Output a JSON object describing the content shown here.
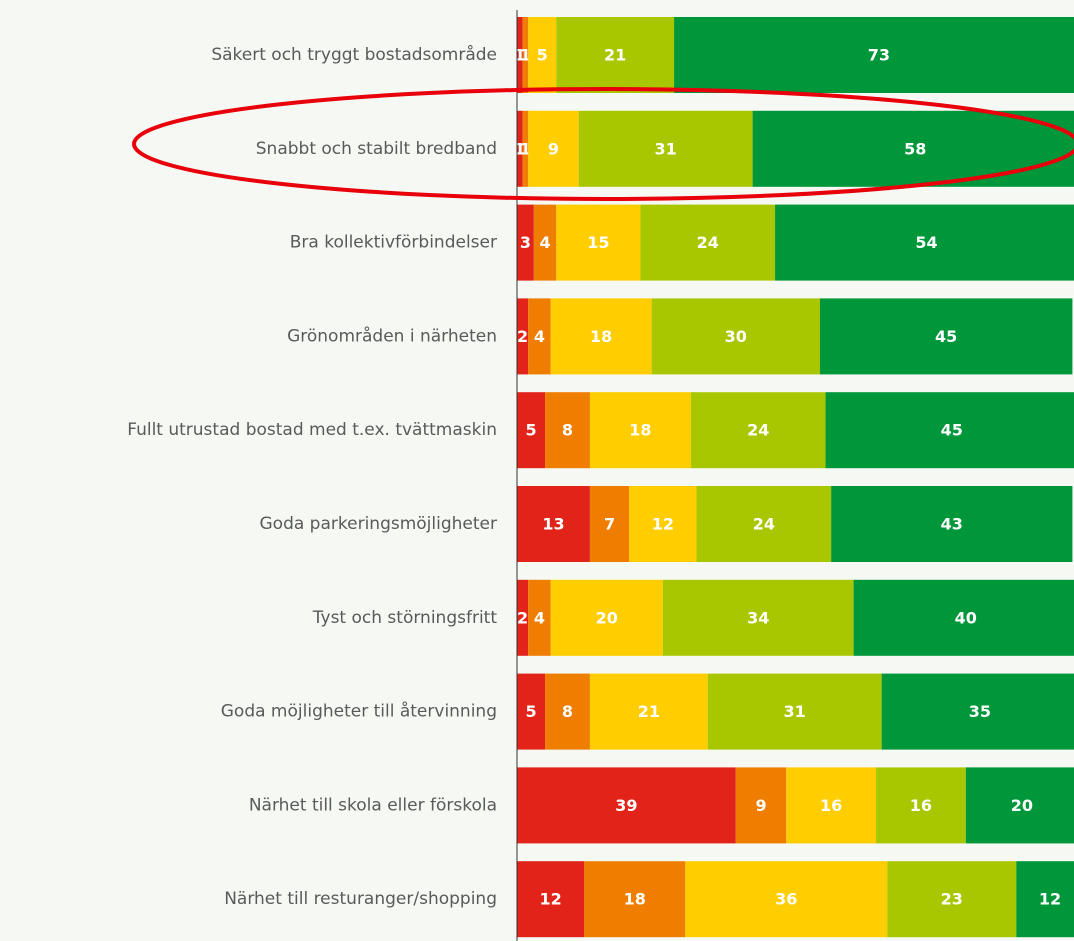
{
  "chart_data": {
    "type": "stacked-bar",
    "orientation": "horizontal",
    "categories": [
      "Säkert och tryggt bostadsområde",
      "Snabbt och stabilt bredband",
      "Bra kollektivförbindelser",
      "Grönområden i närheten",
      "Fullt utrustad bostad med t.ex. tvättmaskin",
      "Goda parkeringsmöjligheter",
      "Tyst och störningsfritt",
      "Goda möjligheter till återvinning",
      "Närhet till skola eller förskola",
      "Närhet till resturanger/shopping"
    ],
    "series": [
      {
        "color": "#e2231a",
        "values": [
          1,
          1,
          3,
          2,
          5,
          13,
          2,
          5,
          39,
          12
        ]
      },
      {
        "color": "#ee7d00",
        "values": [
          1,
          1,
          4,
          4,
          8,
          7,
          4,
          8,
          9,
          18
        ]
      },
      {
        "color": "#ffcd00",
        "values": [
          5,
          9,
          15,
          18,
          18,
          12,
          20,
          21,
          16,
          36
        ]
      },
      {
        "color": "#a9c700",
        "values": [
          21,
          31,
          24,
          30,
          24,
          24,
          34,
          31,
          16,
          23
        ]
      },
      {
        "color": "#00963a",
        "values": [
          73,
          58,
          54,
          45,
          45,
          43,
          40,
          35,
          20,
          12
        ]
      }
    ],
    "xlim": [
      0,
      100
    ]
  }
}
